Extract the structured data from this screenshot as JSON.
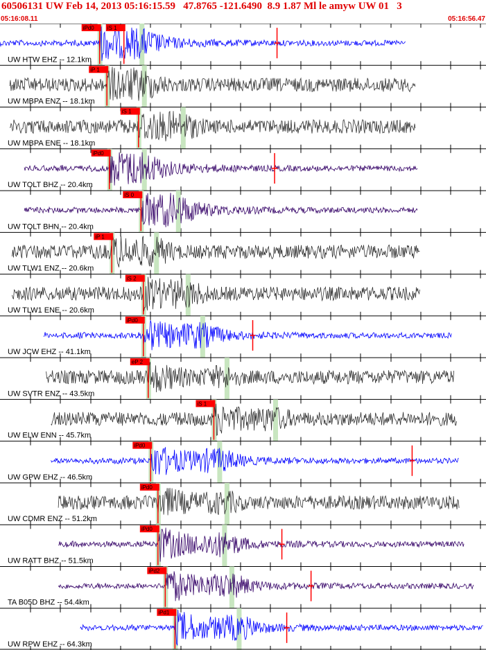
{
  "header": {
    "title": "60506131 UW Feb 14, 2013 05:16:15.59   47.8765 -121.6490  8.9 1.87 Ml le amyw UW 01   3",
    "start_time": "05:16:08.11",
    "end_time": "05:16:56.47"
  },
  "colors": {
    "header_red": "#e00000",
    "pick_red": "#ff0000",
    "blue_trace": "#0000ff",
    "dark_trace": "#333333",
    "purple_trace": "#330066",
    "window_green": "#c8e6c0"
  },
  "traces": [
    {
      "label": "UW HTW EHZ -- 12.1km",
      "color": "#0000ff",
      "start": 0,
      "end": 0.835,
      "picks": [
        {
          "label": "iPd0",
          "pos": 0.205
        },
        {
          "label": "iS 1",
          "pos": 0.255
        }
      ],
      "band": 0.05,
      "red_mark": 0.57
    },
    {
      "label": "UW MBPA ENZ -- 18.1km",
      "color": "#333333",
      "start": 0.02,
      "end": 0.855,
      "picks": [
        {
          "label": "iP 1",
          "pos": 0.22
        }
      ],
      "band": 0.03
    },
    {
      "label": "UW MBPA ENE -- 18.1km",
      "color": "#333333",
      "start": 0.02,
      "end": 0.855,
      "picks": [
        {
          "label": "iS 1",
          "pos": 0.285
        }
      ],
      "band": 0.06
    },
    {
      "label": "UW TOLT BHZ -- 20.4km",
      "color": "#330066",
      "start": 0.05,
      "end": 0.86,
      "picks": [
        {
          "label": "iPd0",
          "pos": 0.225
        }
      ],
      "band": 0.02,
      "red_mark": 0.565
    },
    {
      "label": "UW TOLT BHN -- 20.4km",
      "color": "#330066",
      "start": 0.05,
      "end": 0.86,
      "picks": [
        {
          "label": "iS 0",
          "pos": 0.29
        }
      ],
      "band": 0.03
    },
    {
      "label": "UW TLW1 ENZ -- 20.6km",
      "color": "#333333",
      "start": 0.025,
      "end": 0.865,
      "picks": [
        {
          "label": "iP 1",
          "pos": 0.23
        }
      ],
      "band": 0.06
    },
    {
      "label": "UW TLW1 ENE -- 20.6km",
      "color": "#333333",
      "start": 0.025,
      "end": 0.865,
      "picks": [
        {
          "label": "iS 2",
          "pos": 0.295
        }
      ],
      "band": 0.06
    },
    {
      "label": "UW JCW EHZ -- 41.1km",
      "color": "#0000ff",
      "start": 0.09,
      "end": 0.93,
      "picks": [
        {
          "label": "iPd0",
          "pos": 0.295
        }
      ],
      "band": 0.12,
      "red_mark": 0.52
    },
    {
      "label": "UW SVTR ENZ -- 43.5km",
      "color": "#333333",
      "start": 0.095,
      "end": 0.935,
      "picks": [
        {
          "label": "eP 2",
          "pos": 0.305
        }
      ],
      "band": 0.2
    },
    {
      "label": "UW ELW ENN -- 45.7km",
      "color": "#333333",
      "start": 0.105,
      "end": 0.94,
      "picks": [
        {
          "label": "iS 1",
          "pos": 0.44
        }
      ],
      "band": 0.13
    },
    {
      "label": "UW GPW EHZ -- 46.5km",
      "color": "#0000ff",
      "start": 0.105,
      "end": 0.945,
      "picks": [
        {
          "label": "iPd0",
          "pos": 0.31
        }
      ],
      "band": 0.16,
      "red_mark": 0.848
    },
    {
      "label": "UW CDMR ENZ -- 51.2km",
      "color": "#333333",
      "start": 0.12,
      "end": 0.945,
      "picks": [
        {
          "label": "iPd0",
          "pos": 0.325
        }
      ],
      "band": 0.16
    },
    {
      "label": "UW RATT BHZ -- 51.5km",
      "color": "#330066",
      "start": 0.12,
      "end": 0.955,
      "picks": [
        {
          "label": "iPd0",
          "pos": 0.325
        }
      ],
      "band": 0.15,
      "red_mark": 0.58
    },
    {
      "label": "TA B05D BHZ -- 54.4km",
      "color": "#330066",
      "start": 0.12,
      "end": 0.975,
      "picks": [
        {
          "label": "iPd2",
          "pos": 0.34
        }
      ],
      "band": 0.15,
      "red_mark": 0.64
    },
    {
      "label": "UW RPW EHZ -- 64.3km",
      "color": "#0000ff",
      "start": 0.165,
      "end": 0.995,
      "picks": [
        {
          "label": "iPd1",
          "pos": 0.36
        }
      ],
      "band": 0.14,
      "red_mark": 0.59
    }
  ]
}
